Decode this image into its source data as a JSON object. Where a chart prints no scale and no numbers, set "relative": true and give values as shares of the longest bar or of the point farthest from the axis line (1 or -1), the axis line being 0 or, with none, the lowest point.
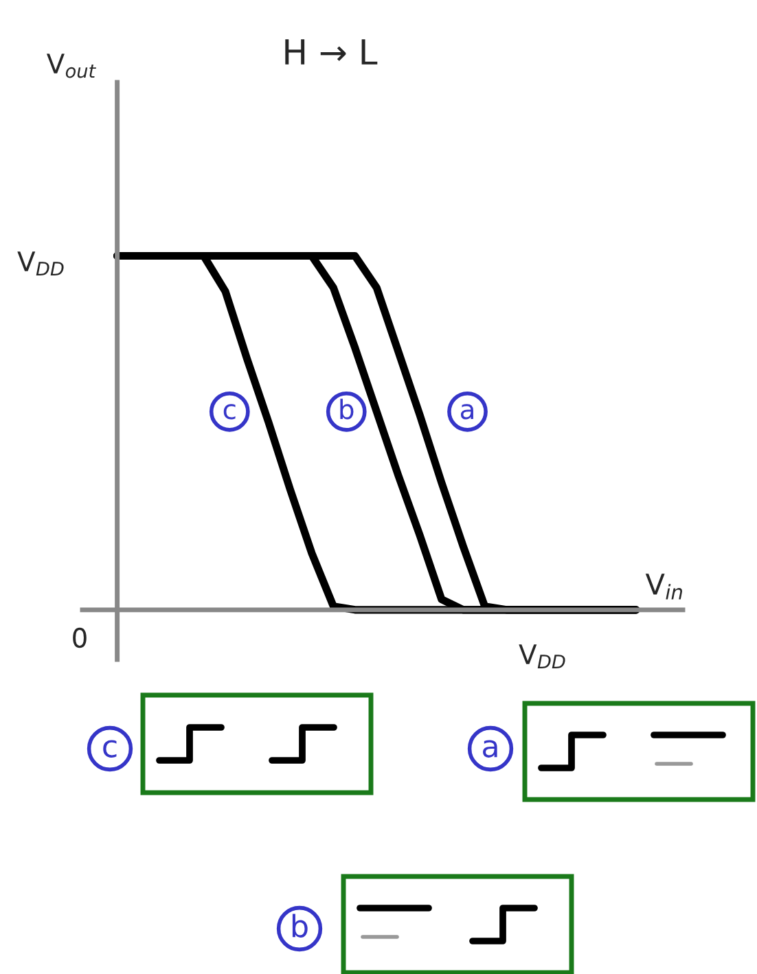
{
  "chart_data": {
    "type": "line",
    "title": "H → L",
    "xlabel": "V$_{in}$",
    "relative": true,
    "categories": [
      null,
      null,
      null,
      null,
      null,
      null,
      null,
      null,
      null,
      null,
      null,
      null,
      null,
      null,
      null,
      null,
      null,
      null,
      null,
      null,
      null,
      null,
      null,
      null,
      null
    ],
    "series": [
      {
        "name": "c",
        "color": "#000000",
        "values": [
          1,
          1,
          1,
          1,
          1,
          0.9,
          0.71,
          0.53,
          0.34,
          0.16,
          0.01,
          0,
          0,
          0,
          0,
          0,
          0,
          0,
          0,
          0,
          0,
          0,
          0,
          0,
          0
        ]
      },
      {
        "name": "b",
        "color": "#000000",
        "values": [
          1,
          1,
          1,
          1,
          1,
          1,
          1,
          1,
          1,
          1,
          0.91,
          0.74,
          0.56,
          0.38,
          0.21,
          0.03,
          0,
          0,
          0,
          0,
          0,
          0,
          0,
          0,
          0
        ]
      },
      {
        "name": "a",
        "color": "#000000",
        "values": [
          1,
          1,
          1,
          1,
          1,
          1,
          1,
          1,
          1,
          1,
          1,
          1,
          0.91,
          0.73,
          0.55,
          0.36,
          0.18,
          0.01,
          0,
          0,
          0,
          0,
          0,
          0,
          0
        ]
      }
    ],
    "annotations": [
      "V$_{out}$",
      "0",
      "V$_{DD}$",
      "V$_{DD}$",
      "c",
      "a",
      "b"
    ],
    "legend": false,
    "line_style": "solid",
    "marker": "none"
  }
}
